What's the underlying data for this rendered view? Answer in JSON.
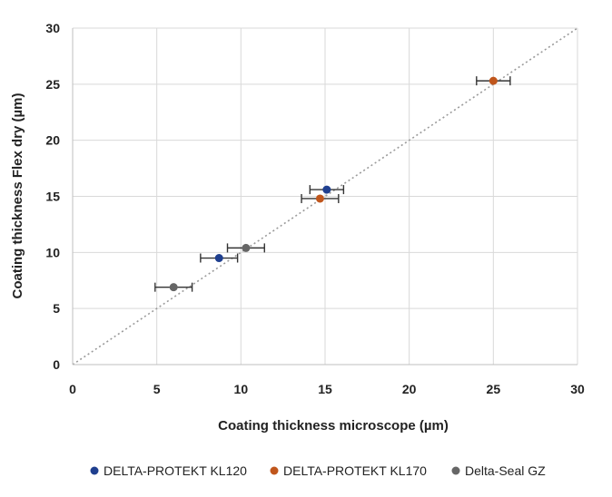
{
  "chart_data": {
    "type": "scatter",
    "title": "",
    "xlabel": "Coating thickness microscope (µm)",
    "ylabel": "Coating thickness Flex dry (µm)",
    "xlim": [
      0,
      30
    ],
    "ylim": [
      0,
      30
    ],
    "xticks": [
      0,
      5,
      10,
      15,
      20,
      25,
      30
    ],
    "yticks": [
      0,
      5,
      10,
      15,
      20,
      25,
      30
    ],
    "grid": true,
    "legend_position": "bottom",
    "reference_line": {
      "style": "dotted",
      "from": [
        0,
        0
      ],
      "to": [
        30,
        30
      ],
      "color": "#9a9a9a"
    },
    "series": [
      {
        "name": "DELTA-PROTEKT KL120",
        "color": "#1f3f8f",
        "points": [
          {
            "x": 8.7,
            "y": 9.5,
            "xerr": 1.1
          },
          {
            "x": 15.1,
            "y": 15.6,
            "xerr": 1.0
          }
        ]
      },
      {
        "name": "DELTA-PROTEKT KL170",
        "color": "#c0561c",
        "points": [
          {
            "x": 14.7,
            "y": 14.8,
            "xerr": 1.1
          },
          {
            "x": 25.0,
            "y": 25.3,
            "xerr": 1.0
          }
        ]
      },
      {
        "name": "Delta-Seal GZ",
        "color": "#666666",
        "points": [
          {
            "x": 6.0,
            "y": 6.9,
            "xerr": 1.1
          },
          {
            "x": 10.3,
            "y": 10.4,
            "xerr": 1.1
          }
        ]
      }
    ]
  }
}
